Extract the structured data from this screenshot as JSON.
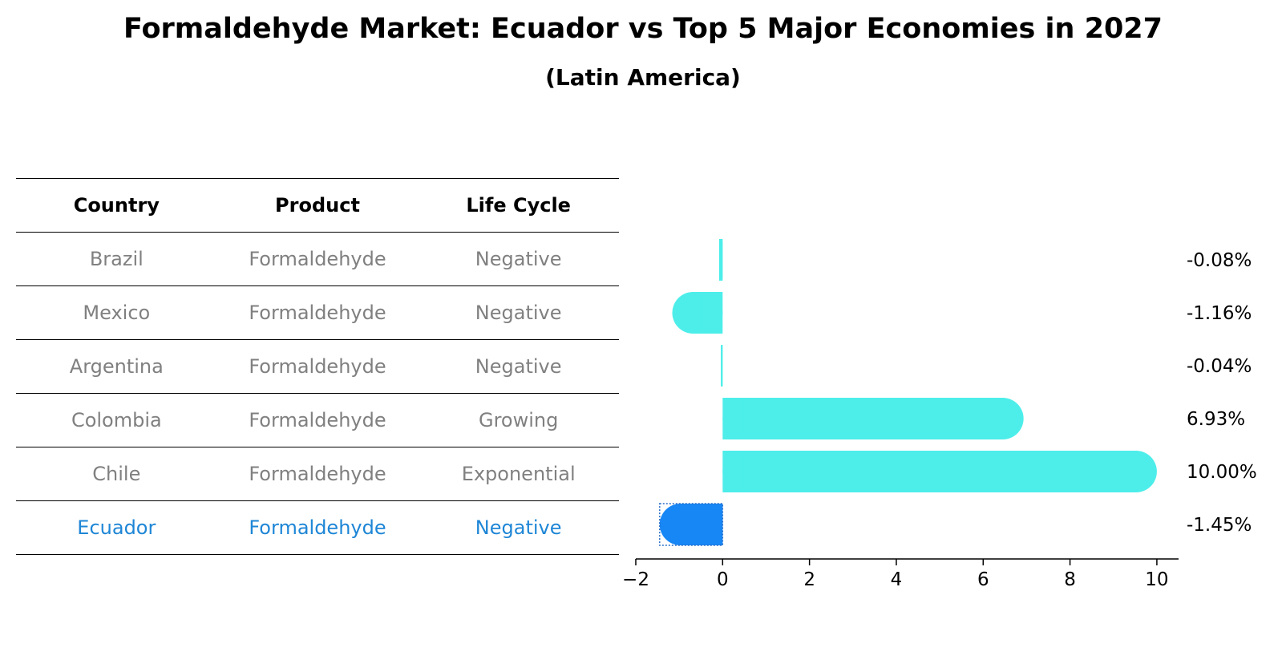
{
  "title": "Formaldehyde Market: Ecuador vs Top 5 Major Economies in 2027",
  "subtitle": "(Latin America)",
  "table": {
    "headers": [
      "Country",
      "Product",
      "Life Cycle"
    ],
    "rows": [
      [
        "Brazil",
        "Formaldehyde",
        "Negative"
      ],
      [
        "Mexico",
        "Formaldehyde",
        "Negative"
      ],
      [
        "Argentina",
        "Formaldehyde",
        "Negative"
      ],
      [
        "Colombia",
        "Formaldehyde",
        "Growing"
      ],
      [
        "Chile",
        "Formaldehyde",
        "Exponential"
      ],
      [
        "Ecuador",
        "Formaldehyde",
        "Negative"
      ]
    ],
    "highlight_row": 5
  },
  "colors": {
    "bar": "#4DEEEA",
    "highlight_bar": "#1787F5",
    "highlight_text": "#1E86D6",
    "muted_text": "#808080"
  },
  "chart_data": {
    "type": "bar",
    "orientation": "horizontal",
    "categories": [
      "Brazil",
      "Mexico",
      "Argentina",
      "Colombia",
      "Chile",
      "Ecuador"
    ],
    "values": [
      -0.08,
      -1.16,
      -0.04,
      6.93,
      10.0,
      -1.45
    ],
    "value_labels": [
      "-0.08%",
      "-1.16%",
      "-0.04%",
      "6.93%",
      "10.00%",
      "-1.45%"
    ],
    "highlight": "Ecuador",
    "xlim": [
      -2,
      10.5
    ],
    "xticks": [
      -2,
      0,
      2,
      4,
      6,
      8,
      10
    ],
    "xtick_labels": [
      "−2",
      "0",
      "2",
      "4",
      "6",
      "8",
      "10"
    ],
    "xlabel": "",
    "ylabel": "",
    "grid": false
  }
}
